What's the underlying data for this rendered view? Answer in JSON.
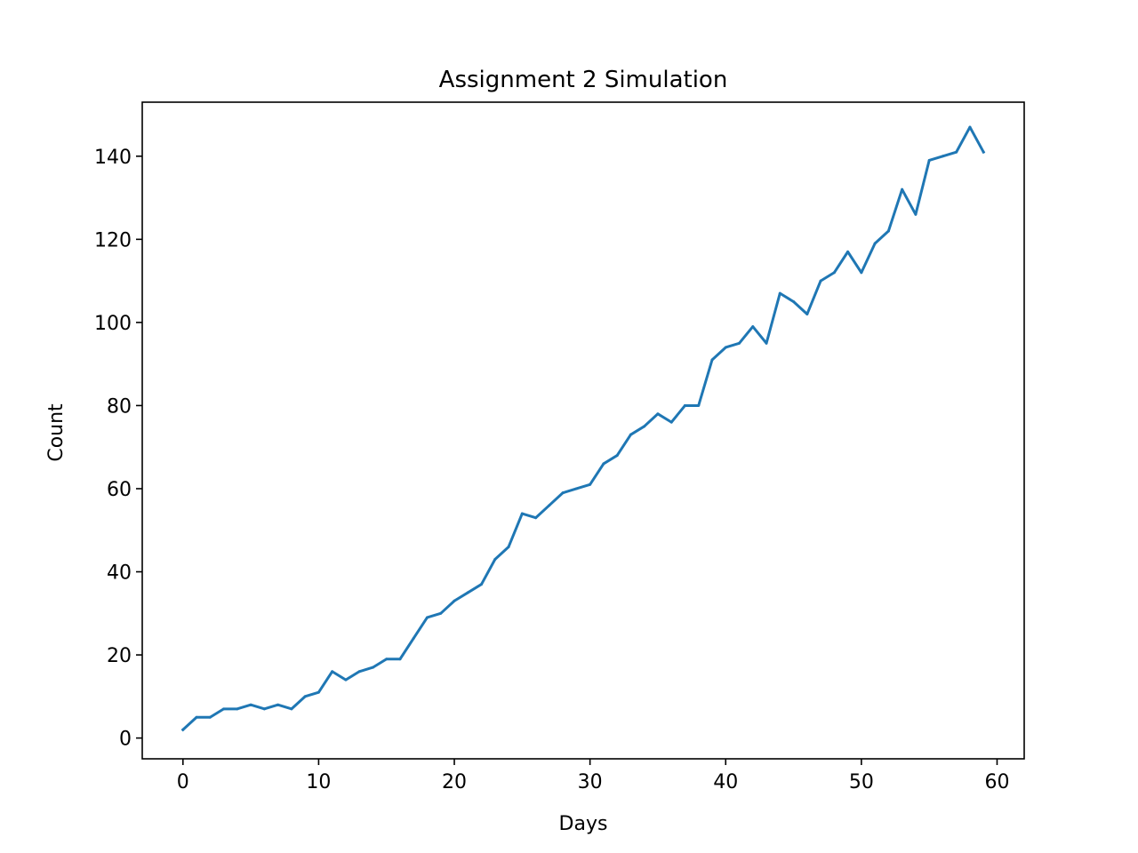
{
  "chart_data": {
    "type": "line",
    "title": "Assignment 2 Simulation",
    "xlabel": "Days",
    "ylabel": "Count",
    "xlim": [
      -3,
      62
    ],
    "ylim": [
      -5,
      153
    ],
    "xticks": [
      0,
      10,
      20,
      30,
      40,
      50,
      60
    ],
    "yticks": [
      0,
      20,
      40,
      60,
      80,
      100,
      120,
      140
    ],
    "grid": false,
    "color": "#1f77b4",
    "x": [
      0,
      1,
      2,
      3,
      4,
      5,
      6,
      7,
      8,
      9,
      10,
      11,
      12,
      13,
      14,
      15,
      16,
      17,
      18,
      19,
      20,
      21,
      22,
      23,
      24,
      25,
      26,
      27,
      28,
      29,
      30,
      31,
      32,
      33,
      34,
      35,
      36,
      37,
      38,
      39,
      40,
      41,
      42,
      43,
      44,
      45,
      46,
      47,
      48,
      49,
      50,
      51,
      52,
      53,
      54,
      55,
      56,
      57,
      58,
      59
    ],
    "values": [
      2,
      5,
      5,
      7,
      7,
      8,
      7,
      8,
      7,
      10,
      11,
      16,
      14,
      16,
      17,
      19,
      19,
      24,
      29,
      30,
      33,
      35,
      37,
      43,
      46,
      54,
      53,
      56,
      59,
      60,
      61,
      66,
      68,
      73,
      75,
      78,
      76,
      80,
      80,
      91,
      94,
      95,
      99,
      95,
      107,
      105,
      102,
      110,
      112,
      117,
      112,
      119,
      122,
      132,
      126,
      139,
      140,
      141,
      147,
      141
    ]
  }
}
